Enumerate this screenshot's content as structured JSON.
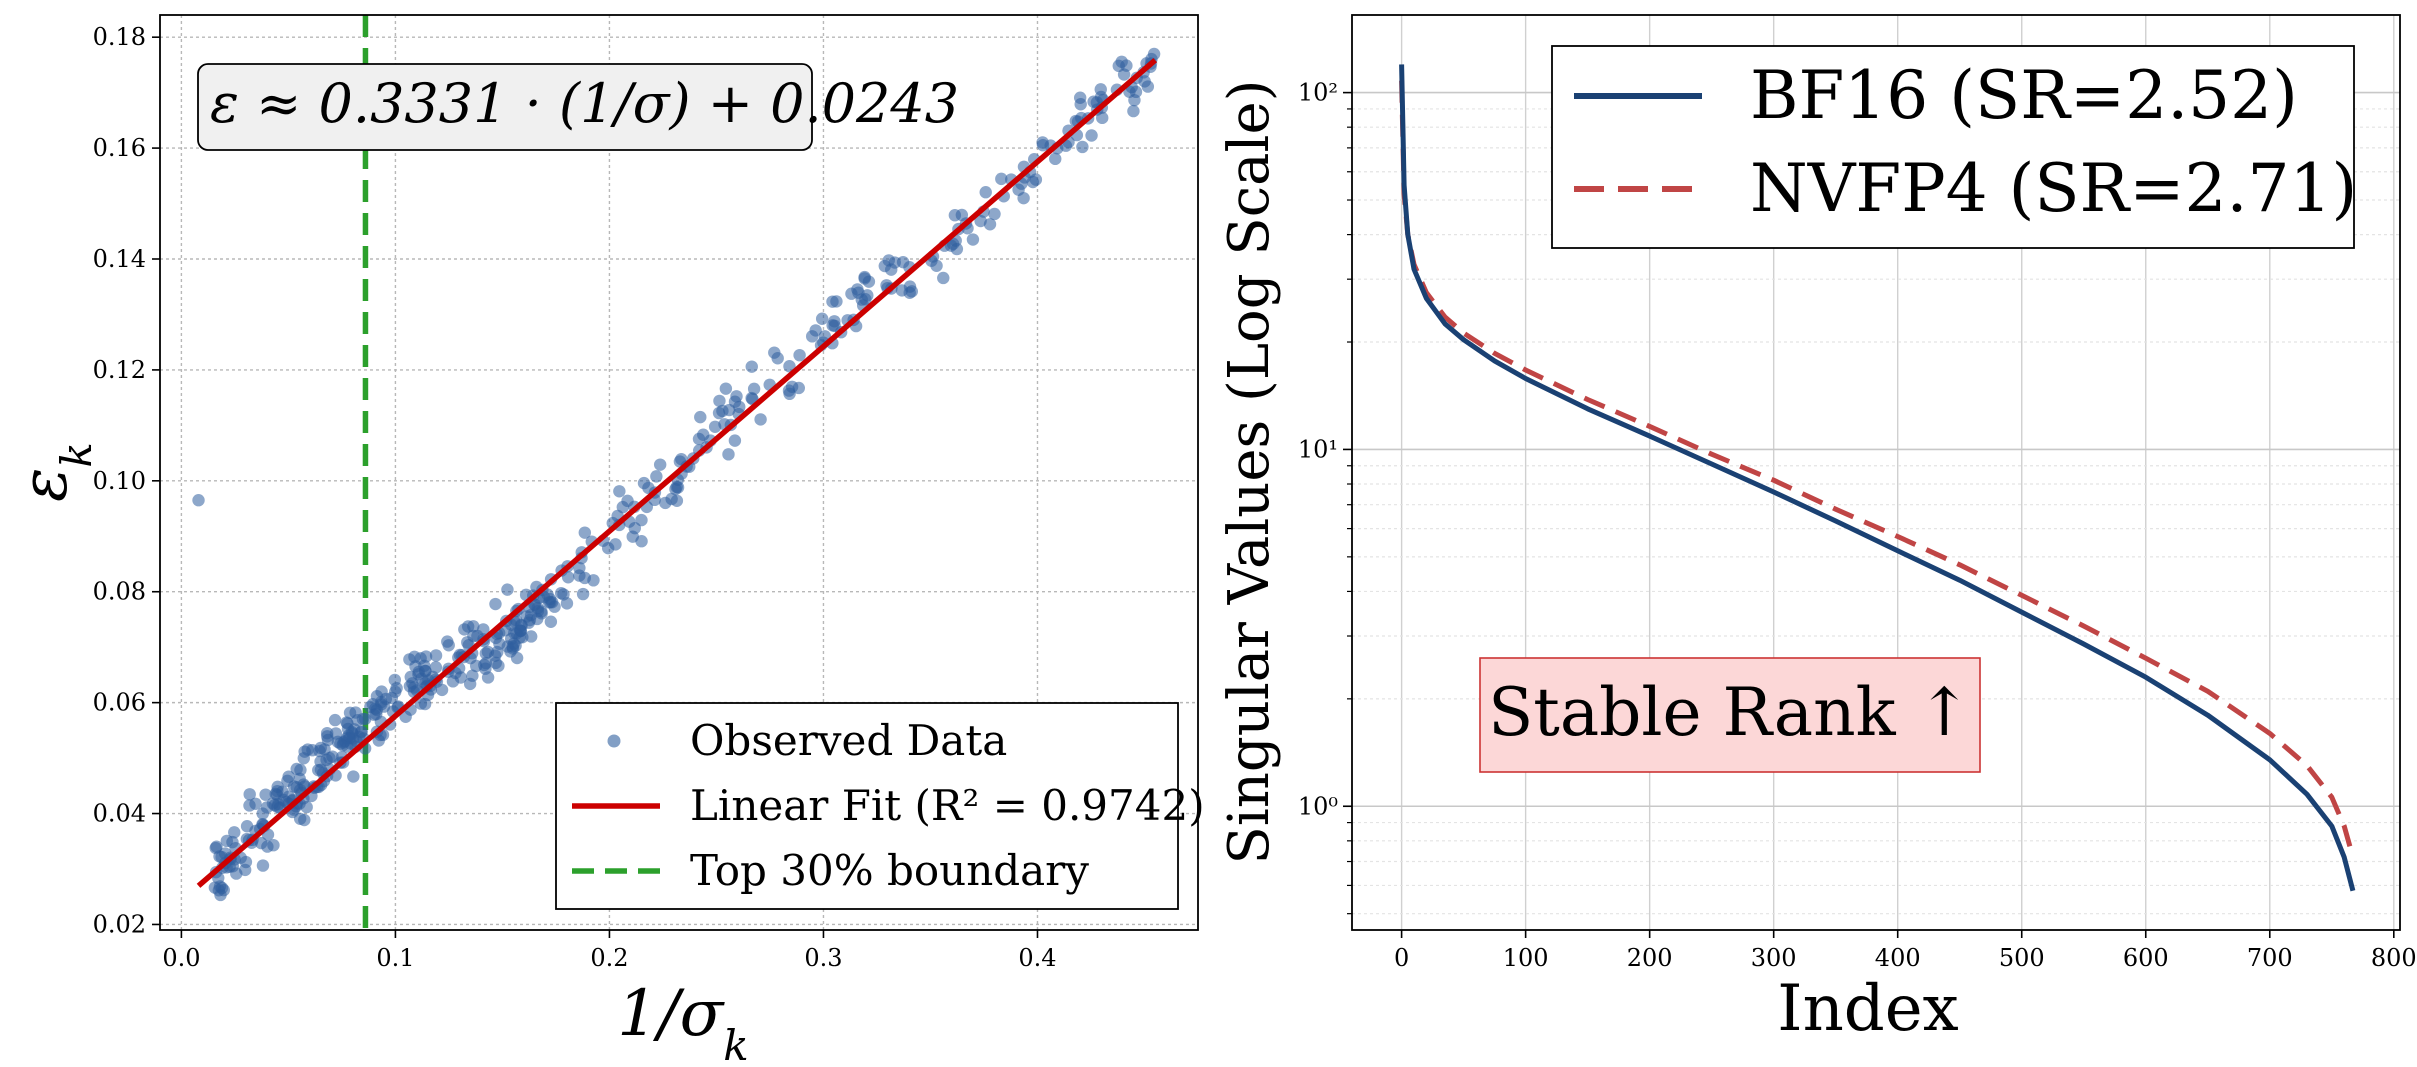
{
  "chart_data": [
    {
      "type": "scatter",
      "xlabel": "1/σ",
      "xlabel_sub": "k",
      "ylabel": "ε",
      "ylabel_sub": "k",
      "xlim": [
        -0.01,
        0.475
      ],
      "ylim": [
        0.019,
        0.184
      ],
      "x_ticks": [
        0.0,
        0.1,
        0.2,
        0.3,
        0.4
      ],
      "x_tick_labels": [
        "0.0",
        "0.1",
        "0.2",
        "0.3",
        "0.4"
      ],
      "y_ticks": [
        0.02,
        0.04,
        0.06,
        0.08,
        0.1,
        0.12,
        0.14,
        0.16,
        0.18
      ],
      "y_tick_labels": [
        "0.02",
        "0.04",
        "0.06",
        "0.08",
        "0.10",
        "0.12",
        "0.14",
        "0.16",
        "0.18"
      ],
      "grid": true,
      "annotation": "ε ≈ 0.3331 · (1/σ) + 0.0243",
      "fit": {
        "slope": 0.3331,
        "intercept": 0.0243,
        "x_range": [
          0.008,
          0.455
        ]
      },
      "boundary_x": 0.086,
      "scatter_count": 500,
      "scatter_x_range": [
        0.015,
        0.455
      ],
      "outlier": {
        "x": 0.008,
        "y": 0.0965
      },
      "colors": {
        "points": "#2f5f9e",
        "fit": "#cc0000",
        "boundary": "#2ca02c"
      },
      "legend": {
        "position": "lower-right",
        "entries": [
          {
            "label": "Observed Data",
            "kind": "marker",
            "color": "#2f5f9e"
          },
          {
            "label": "Linear Fit (R² = 0.9742)",
            "kind": "line",
            "color": "#cc0000"
          },
          {
            "label": "Top 30% boundary",
            "kind": "dashed",
            "color": "#2ca02c"
          }
        ]
      }
    },
    {
      "type": "line",
      "xlabel": "Index",
      "ylabel": "Singular Values (Log Scale)",
      "xlim": [
        -40,
        805
      ],
      "ylim_log": [
        0.45,
        165
      ],
      "x_ticks": [
        0,
        100,
        200,
        300,
        400,
        500,
        600,
        700,
        800
      ],
      "x_tick_labels": [
        "0",
        "100",
        "200",
        "300",
        "400",
        "500",
        "600",
        "700",
        "800"
      ],
      "y_ticks": [
        1,
        10,
        100
      ],
      "y_tick_labels": [
        "10⁰",
        "10¹",
        "10²"
      ],
      "grid": true,
      "annotation": "Stable Rank ↑",
      "legend": {
        "position": "top-right",
        "entries": [
          {
            "label": "BF16 (SR=2.52)",
            "kind": "line",
            "color": "#1a4173"
          },
          {
            "label": "NVFP4 (SR=2.71)",
            "kind": "dashed",
            "color": "#c04545"
          }
        ]
      },
      "series": [
        {
          "name": "BF16 (SR=2.52)",
          "x": [
            0,
            2,
            5,
            10,
            20,
            35,
            50,
            75,
            100,
            150,
            200,
            250,
            300,
            350,
            400,
            450,
            500,
            550,
            600,
            650,
            700,
            730,
            750,
            760,
            767
          ],
          "y": [
            120,
            55,
            40,
            32,
            26.5,
            22.5,
            20.3,
            17.7,
            15.8,
            13,
            10.9,
            9.1,
            7.6,
            6.3,
            5.2,
            4.3,
            3.5,
            2.85,
            2.3,
            1.8,
            1.35,
            1.08,
            0.88,
            0.72,
            0.58
          ]
        },
        {
          "name": "NVFP4 (SR=2.71)",
          "x": [
            0,
            2,
            5,
            10,
            20,
            35,
            50,
            75,
            100,
            150,
            200,
            250,
            300,
            350,
            400,
            450,
            500,
            550,
            600,
            650,
            700,
            730,
            750,
            760,
            767
          ],
          "y": [
            108,
            52,
            40,
            33,
            27.5,
            23.5,
            21.2,
            18.6,
            16.7,
            13.8,
            11.6,
            9.7,
            8.2,
            6.8,
            5.7,
            4.75,
            3.9,
            3.2,
            2.6,
            2.1,
            1.6,
            1.3,
            1.06,
            0.88,
            0.72
          ]
        }
      ]
    }
  ]
}
